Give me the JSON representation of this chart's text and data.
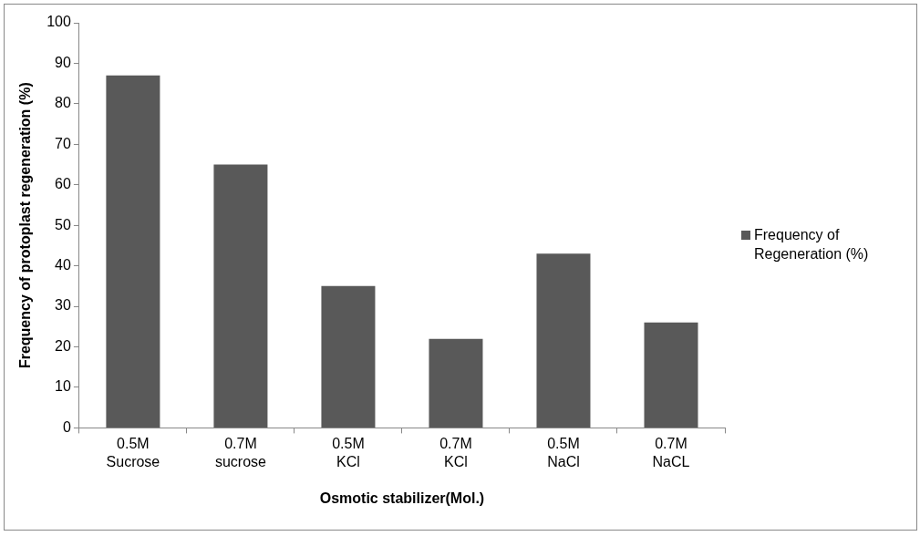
{
  "chart_data": {
    "type": "bar",
    "xlabel": "Osmotic stabilizer(Mol.)",
    "ylabel": "Frequency of protoplast regeneration (%)",
    "categories": [
      "0.5M Sucrose",
      "0.7M sucrose",
      "0.5M KCl",
      "0.7M KCl",
      "0.5M NaCl",
      "0.7M NaCL"
    ],
    "series": [
      {
        "name": "Frequency of Regeneration (%)",
        "color": "#595959",
        "values": [
          87,
          65,
          35,
          22,
          43,
          26
        ]
      }
    ],
    "ylim": [
      0,
      100
    ],
    "yticks": [
      0,
      10,
      20,
      30,
      40,
      50,
      60,
      70,
      80,
      90,
      100
    ],
    "grid": false,
    "legend": "right"
  }
}
